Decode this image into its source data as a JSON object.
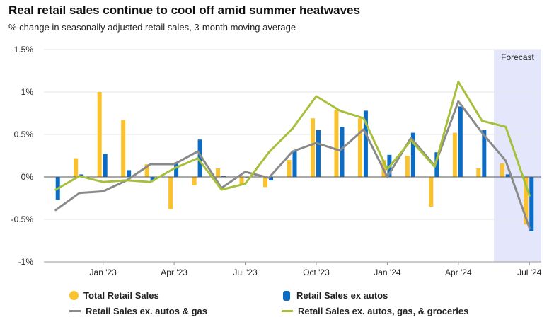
{
  "title": "Real retail sales continue to cool off amid summer heatwaves",
  "subtitle": "% change in seasonally adjusted retail sales, 3-month moving average",
  "chart_data": {
    "type": "bar+line",
    "title": "Real retail sales continue to cool off amid summer heatwaves",
    "subtitle": "% change in seasonally adjusted retail sales, 3-month moving average",
    "ylim": [
      -1,
      1.5
    ],
    "yticks": [
      1.5,
      1,
      0.5,
      0,
      -0.5,
      -1
    ],
    "ytick_labels": [
      "1.5%",
      "1%",
      "0.5%",
      "0%",
      "-0.5%",
      "-1%"
    ],
    "x_tick_labels": [
      {
        "label": "Jan '23",
        "index": 2
      },
      {
        "label": "Apr '23",
        "index": 5
      },
      {
        "label": "Jul '23",
        "index": 8
      },
      {
        "label": "Oct '23",
        "index": 11
      },
      {
        "label": "Jan '24",
        "index": 14
      },
      {
        "label": "Apr '24",
        "index": 17
      },
      {
        "label": "Jul '24",
        "index": 20
      }
    ],
    "periods": [
      "Nov '22",
      "Dec '22",
      "Jan '23",
      "Feb '23",
      "Mar '23",
      "Apr '23",
      "May '23",
      "Jun '23",
      "Jul '23",
      "Aug '23",
      "Sep '23",
      "Oct '23",
      "Nov '23",
      "Dec '23",
      "Jan '24",
      "Feb '24",
      "Mar '24",
      "Apr '24",
      "May '24",
      "Jun '24",
      "Jul '24"
    ],
    "forecast": {
      "label": "Forecast",
      "from_index": 19,
      "to_index": 20
    },
    "grid": true,
    "legend_position": "bottom",
    "series": [
      {
        "name": "Total Retail Sales",
        "kind": "bar",
        "color": "#f9c22e",
        "values": [
          null,
          0.22,
          1.0,
          0.67,
          0.15,
          -0.38,
          -0.1,
          0.1,
          -0.1,
          -0.12,
          0.2,
          0.69,
          0.79,
          0.69,
          0.2,
          0.25,
          -0.35,
          0.52,
          0.1,
          0.16,
          -0.56
        ]
      },
      {
        "name": "Retail Sales ex autos",
        "kind": "bar",
        "color": "#0a6cc4",
        "values": [
          -0.27,
          0.03,
          0.27,
          0.08,
          -0.05,
          0.17,
          0.44,
          0.01,
          0.0,
          -0.04,
          0.3,
          0.55,
          0.59,
          0.78,
          0.26,
          0.52,
          0.29,
          0.83,
          0.55,
          0.03,
          -0.64
        ]
      },
      {
        "name": "Retail Sales ex. autos & gas",
        "kind": "line",
        "color": "#8a8a8a",
        "values": [
          -0.39,
          -0.19,
          -0.17,
          -0.04,
          0.15,
          0.15,
          0.3,
          -0.13,
          0.06,
          -0.01,
          0.3,
          0.4,
          0.31,
          0.56,
          0.0,
          0.46,
          0.13,
          0.89,
          0.52,
          0.19,
          -0.6
        ]
      },
      {
        "name": "Retail Sales ex. autos, gas, & groceries",
        "kind": "line",
        "color": "#a6c03c",
        "values": [
          -0.15,
          0.01,
          -0.06,
          -0.04,
          -0.06,
          0.1,
          0.22,
          -0.15,
          -0.08,
          0.29,
          0.57,
          0.95,
          0.78,
          0.69,
          0.09,
          0.43,
          0.12,
          1.12,
          0.66,
          0.59,
          -0.22
        ]
      }
    ]
  },
  "legend": [
    {
      "label": "Total Retail Sales",
      "color": "#f9c22e",
      "marker": "dot"
    },
    {
      "label": "Retail Sales ex autos",
      "color": "#0a6cc4",
      "marker": "bar"
    },
    {
      "label": "Retail Sales ex. autos & gas",
      "color": "#8a8a8a",
      "marker": "line"
    },
    {
      "label": "Retail Sales ex. autos, gas, & groceries",
      "color": "#a6c03c",
      "marker": "line"
    }
  ]
}
